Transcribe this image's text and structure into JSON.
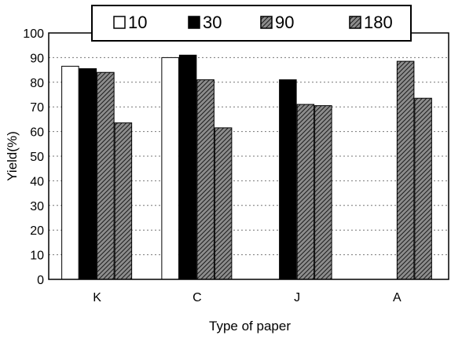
{
  "chart_data": {
    "type": "bar",
    "title": "",
    "xlabel": "Type of paper",
    "ylabel": "Yield(%)",
    "ylim": [
      0,
      100
    ],
    "yticks": [
      0,
      10,
      20,
      30,
      40,
      50,
      60,
      70,
      80,
      90,
      100
    ],
    "categories": [
      "K",
      "C",
      "J",
      "A"
    ],
    "legend_position": "top-center",
    "grid": "horizontal dotted",
    "series": [
      {
        "name": "10",
        "fill": "white",
        "color": "#ffffff",
        "values": [
          86.5,
          90,
          null,
          null
        ]
      },
      {
        "name": "30",
        "fill": "solid",
        "color": "#000000",
        "values": [
          85.5,
          91,
          81,
          null
        ]
      },
      {
        "name": "90",
        "fill": "hatch",
        "color": "#4a4a4a",
        "values": [
          84,
          81,
          71,
          88.5
        ]
      },
      {
        "name": "180",
        "fill": "hatch",
        "color": "#4a4a4a",
        "values": [
          63.5,
          61.5,
          70.5,
          73.5
        ]
      }
    ]
  }
}
